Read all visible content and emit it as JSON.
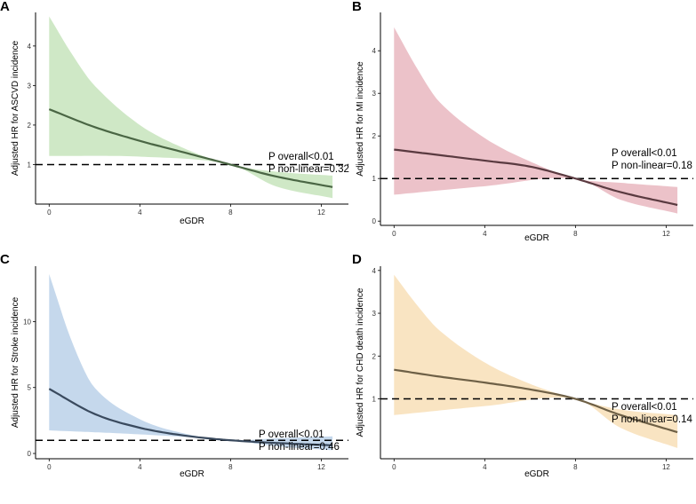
{
  "chart_data": [
    {
      "type": "line",
      "panel": "A",
      "ylabel": "Adjusted HR for ASCVD incidence",
      "xlabel": "eGDR",
      "xlim": [
        -0.6,
        13.2
      ],
      "ylim": [
        0,
        4.85
      ],
      "xticks": [
        0,
        4,
        8,
        12
      ],
      "yticks": [
        1,
        2,
        3,
        4
      ],
      "reference_hr": 1,
      "ribbon_color": "#cfe8c6",
      "line_color": "#4a6644",
      "series": [
        {
          "name": "HR",
          "x": [
            0,
            2,
            4,
            6,
            8,
            10,
            12.5
          ],
          "values": [
            2.4,
            1.95,
            1.6,
            1.3,
            1.0,
            0.7,
            0.43
          ]
        }
      ],
      "ci_lower": {
        "x": [
          0,
          4,
          8,
          10,
          12.5
        ],
        "values": [
          1.22,
          1.2,
          1.0,
          0.45,
          0.15
        ]
      },
      "ci_upper": {
        "x": [
          0,
          1,
          2,
          4,
          6,
          8,
          10,
          12.5
        ],
        "values": [
          4.75,
          3.8,
          3.0,
          2.0,
          1.4,
          1.0,
          0.82,
          0.72
        ]
      },
      "annotations": [
        "P overall<0.01",
        "P non-linear=0.32"
      ]
    },
    {
      "type": "line",
      "panel": "B",
      "ylabel": "Adjusted HR for MI incidence",
      "xlabel": "eGDR",
      "xlim": [
        -0.6,
        13.2
      ],
      "ylim": [
        -0.1,
        4.9
      ],
      "xticks": [
        0,
        4,
        8,
        12
      ],
      "yticks": [
        0,
        1,
        2,
        3,
        4
      ],
      "reference_hr": 1,
      "ribbon_color": "#ecc2c9",
      "line_color": "#5a3a40",
      "series": [
        {
          "name": "HR",
          "x": [
            0,
            2,
            4,
            6,
            8,
            10,
            12.5
          ],
          "values": [
            1.68,
            1.55,
            1.42,
            1.28,
            1.0,
            0.68,
            0.38
          ]
        }
      ],
      "ci_lower": {
        "x": [
          0,
          4,
          8,
          10,
          12.5
        ],
        "values": [
          0.62,
          0.82,
          1.0,
          0.5,
          0.18
        ]
      },
      "ci_upper": {
        "x": [
          0,
          1,
          2,
          4,
          6,
          8,
          10,
          12.5
        ],
        "values": [
          4.55,
          3.6,
          2.8,
          1.95,
          1.4,
          1.0,
          0.9,
          0.8
        ]
      },
      "annotations": [
        "P overall<0.01",
        "P non-linear=0.18"
      ]
    },
    {
      "type": "line",
      "panel": "C",
      "ylabel": "Adjusted HR for Stroke incidence",
      "xlabel": "eGDR",
      "xlim": [
        -0.6,
        13.2
      ],
      "ylim": [
        -0.4,
        14.2
      ],
      "xticks": [
        0,
        4,
        8,
        12
      ],
      "yticks": [
        0,
        5,
        10
      ],
      "reference_hr": 1,
      "ribbon_color": "#c5d8ec",
      "line_color": "#3a4a5e",
      "series": [
        {
          "name": "HR",
          "x": [
            0,
            2,
            4,
            6,
            8,
            10,
            12.5
          ],
          "values": [
            4.9,
            3.0,
            1.95,
            1.35,
            1.0,
            0.8,
            0.62
          ]
        }
      ],
      "ci_lower": {
        "x": [
          0,
          4,
          8,
          10,
          12.5
        ],
        "values": [
          1.75,
          1.45,
          1.0,
          0.55,
          0.25
        ]
      },
      "ci_upper": {
        "x": [
          0,
          1,
          2,
          4,
          6,
          8,
          10,
          12.5
        ],
        "values": [
          13.6,
          8.5,
          5.0,
          2.6,
          1.5,
          1.0,
          1.15,
          1.3
        ]
      },
      "annotations": [
        "P overall<0.01",
        "P non-linear=0.46"
      ]
    },
    {
      "type": "line",
      "panel": "D",
      "ylabel": "Adjusted HR for CHD death incidence",
      "xlabel": "eGDR",
      "xlim": [
        -0.6,
        13.2
      ],
      "ylim": [
        -0.4,
        4.1
      ],
      "xticks": [
        0,
        4,
        8,
        12
      ],
      "yticks": [
        1,
        2,
        3,
        4
      ],
      "reference_hr": 1,
      "ribbon_color": "#f9e4c2",
      "line_color": "#6e6046",
      "series": [
        {
          "name": "HR",
          "x": [
            0,
            2,
            4,
            6,
            8,
            10,
            12.5
          ],
          "values": [
            1.68,
            1.52,
            1.38,
            1.22,
            1.0,
            0.62,
            0.22
          ]
        }
      ],
      "ci_lower": {
        "x": [
          0,
          4,
          8,
          10,
          12.5
        ],
        "values": [
          0.62,
          0.83,
          1.0,
          0.32,
          -0.15
        ]
      },
      "ci_upper": {
        "x": [
          0,
          1,
          2,
          4,
          6,
          8,
          10,
          12.5
        ],
        "values": [
          3.9,
          3.2,
          2.6,
          1.85,
          1.35,
          1.0,
          0.75,
          0.62
        ]
      },
      "annotations": [
        "P overall<0.01",
        "P non-linear=0.14"
      ]
    }
  ]
}
